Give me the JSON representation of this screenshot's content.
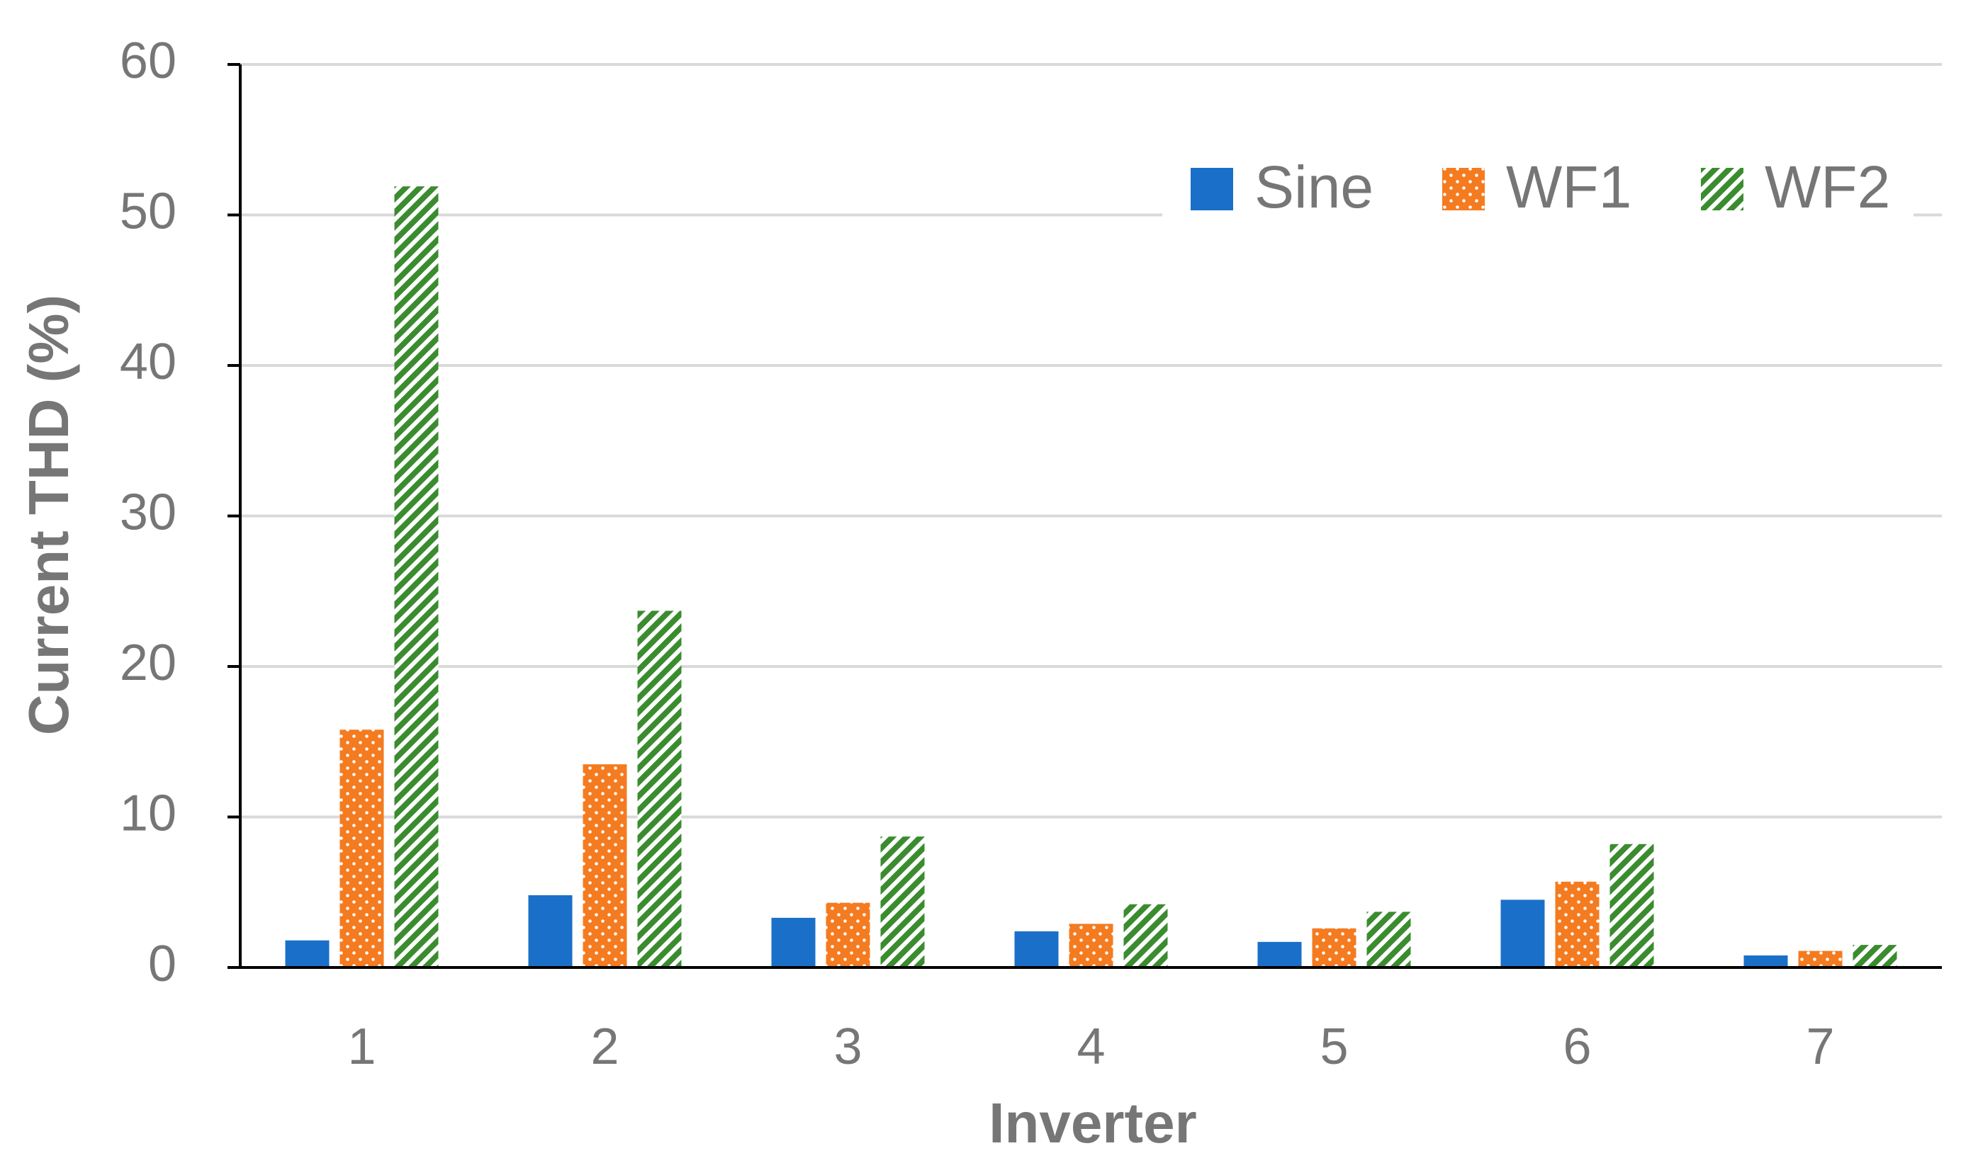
{
  "chart_data": {
    "type": "bar",
    "xlabel": "Inverter",
    "ylabel": "Current THD (%)",
    "categories": [
      "1",
      "2",
      "3",
      "4",
      "5",
      "6",
      "7"
    ],
    "series": [
      {
        "name": "Sine",
        "color": "#1a70c8",
        "pattern": "solid",
        "values": [
          1.8,
          4.8,
          3.3,
          2.4,
          1.7,
          4.5,
          0.8
        ]
      },
      {
        "name": "WF1",
        "color": "#f47b20",
        "pattern": "dots",
        "values": [
          15.8,
          13.5,
          4.3,
          2.9,
          2.6,
          5.7,
          1.1
        ]
      },
      {
        "name": "WF2",
        "color": "#3a8c2e",
        "pattern": "hatch",
        "values": [
          51.9,
          23.7,
          8.7,
          4.2,
          3.7,
          8.2,
          1.5
        ]
      }
    ],
    "ylim": [
      0,
      60
    ],
    "yticks": [
      0,
      10,
      20,
      30,
      40,
      50,
      60
    ],
    "grid": true,
    "legend": "top-right"
  }
}
